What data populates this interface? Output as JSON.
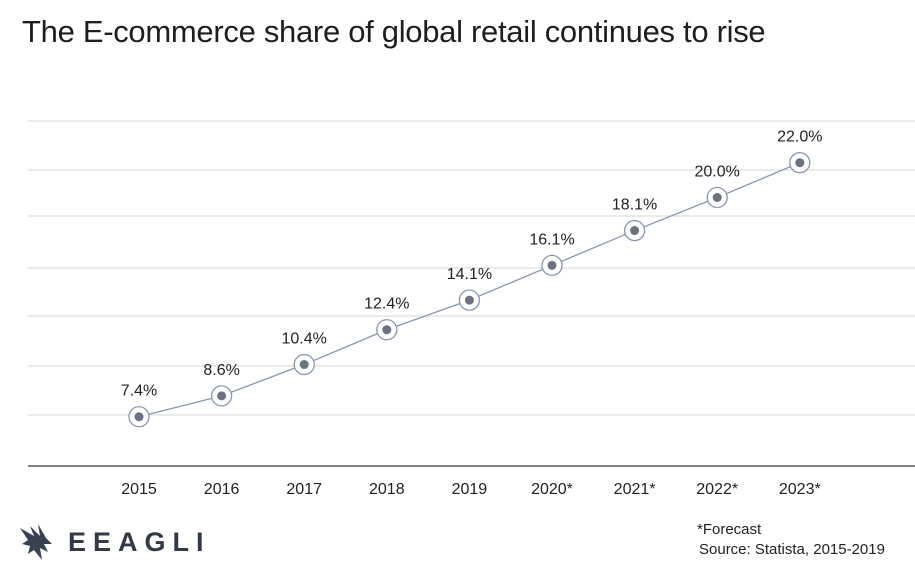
{
  "title": "The E-commerce share of global retail continues to rise",
  "chart_data": {
    "type": "line",
    "categories": [
      "2015",
      "2016",
      "2017",
      "2018",
      "2019",
      "2020*",
      "2021*",
      "2022*",
      "2023*"
    ],
    "values": [
      7.4,
      8.6,
      10.4,
      12.4,
      14.1,
      16.1,
      18.1,
      20.0,
      22.0
    ],
    "value_labels": [
      "7.4%",
      "8.6%",
      "10.4%",
      "12.4%",
      "14.1%",
      "16.1%",
      "18.1%",
      "20.0%",
      "22.0%"
    ],
    "ylim": [
      0,
      24
    ],
    "grid": true,
    "colors": {
      "line": "#8a96ad",
      "marker": "#6b7280",
      "grid": "#d6d6d6",
      "axis": "#555555"
    }
  },
  "footnote": {
    "forecast": "*Forecast",
    "source": "Source: Statista, 2015-2019"
  },
  "brand": {
    "name": "EEAGLI",
    "logo_icon": "eagle-icon"
  }
}
